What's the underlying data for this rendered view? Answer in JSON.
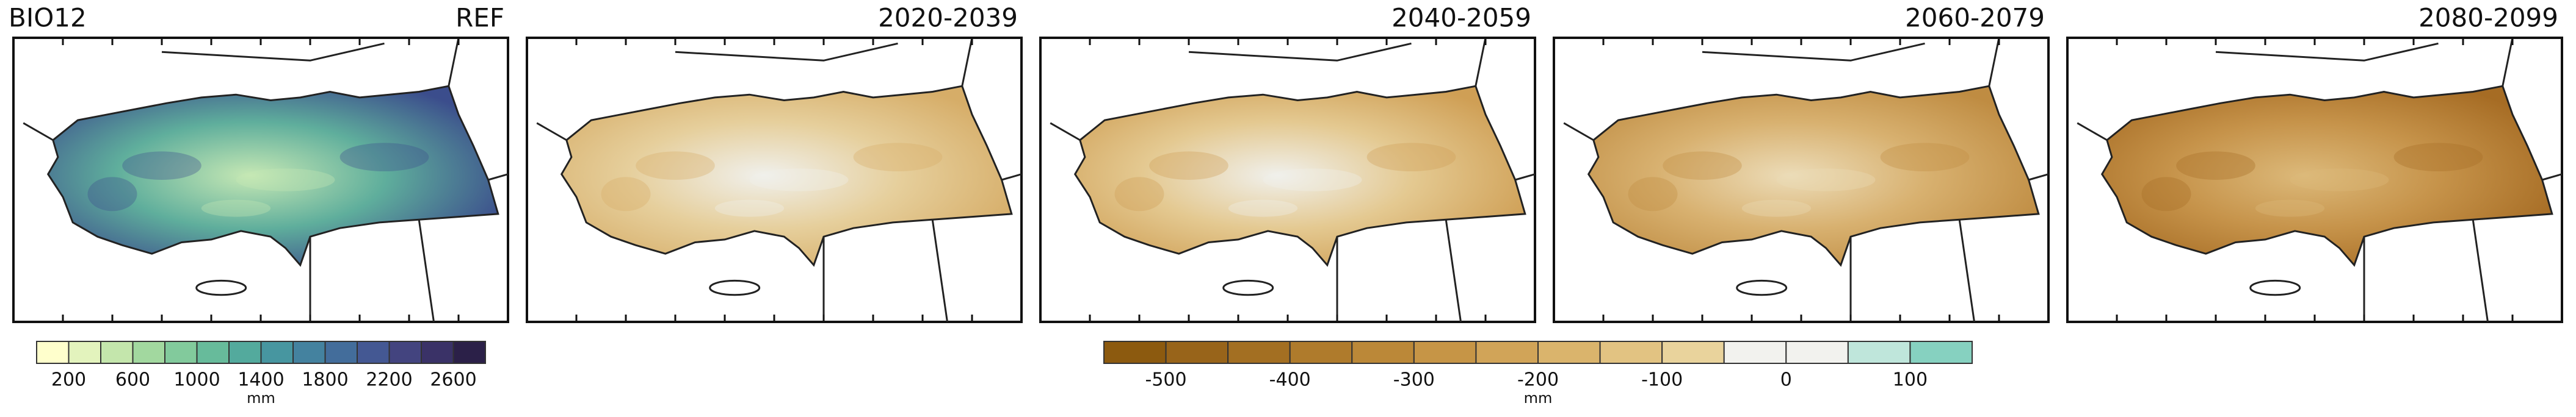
{
  "panels": [
    {
      "left_label": "BIO12",
      "right_label": "REF",
      "colors": [
        "#c6e8b4",
        "#5fae9c",
        "#3b4d8c"
      ]
    },
    {
      "right_label": "2020-2039",
      "colors": [
        "#f0f0ec",
        "#e6cf9c",
        "#d6ad68"
      ]
    },
    {
      "right_label": "2040-2059",
      "colors": [
        "#f0f0ec",
        "#e4c991",
        "#cf9f55"
      ]
    },
    {
      "right_label": "2060-2079",
      "colors": [
        "#ecdcb8",
        "#d8b170",
        "#bf8c42"
      ]
    },
    {
      "right_label": "2080-2099",
      "colors": [
        "#dcb97a",
        "#c6934a",
        "#a66c24"
      ]
    }
  ],
  "colorbars": [
    {
      "ticks": [
        200,
        600,
        1000,
        1400,
        1800,
        2200,
        2600
      ],
      "unit": "mm",
      "colors": [
        "#ffffcc",
        "#e3f3bd",
        "#c4e6ac",
        "#a2d89f",
        "#82ca9c",
        "#67bb9b",
        "#53aa9d",
        "#4796a0",
        "#44829f",
        "#436d9b",
        "#445893",
        "#43447f",
        "#3a3267",
        "#2b2048"
      ]
    },
    {
      "ticks": [
        -500,
        -400,
        -300,
        -200,
        -100,
        0,
        100
      ],
      "unit": "mm",
      "colors": [
        "#8c5a0f",
        "#98641a",
        "#a36f22",
        "#af7b2c",
        "#bb8838",
        "#c69546",
        "#d1a458",
        "#dab46c",
        "#e2c382",
        "#e9d39c",
        "#f2f2ee",
        "#f2f2ee",
        "#bfe6db",
        "#86d1c0"
      ]
    }
  ]
}
